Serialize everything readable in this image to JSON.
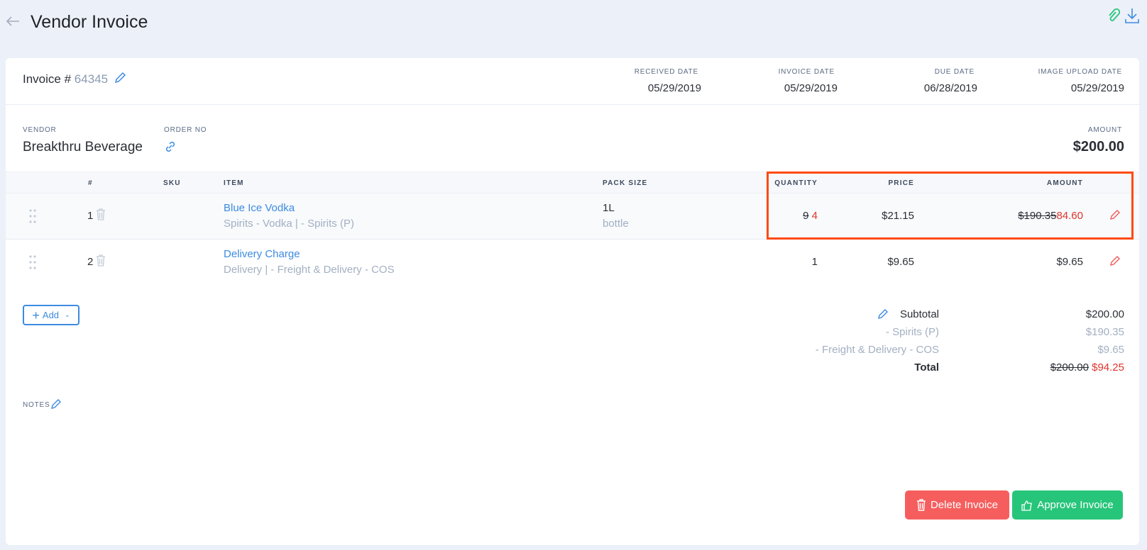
{
  "header": {
    "title": "Vendor Invoice",
    "back_icon": "arrow-left-icon",
    "actions": [
      "paperclip-icon",
      "download-icon"
    ]
  },
  "invoice": {
    "label": "Invoice #",
    "number": "64345",
    "dates": [
      {
        "label": "RECEIVED DATE",
        "value": "05/29/2019"
      },
      {
        "label": "INVOICE DATE",
        "value": "05/29/2019"
      },
      {
        "label": "DUE DATE",
        "value": "06/28/2019"
      },
      {
        "label": "IMAGE UPLOAD DATE",
        "value": "05/29/2019"
      }
    ],
    "vendor_label": "VENDOR",
    "vendor": "Breakthru Beverage",
    "order_label": "ORDER NO",
    "amount_label": "AMOUNT",
    "amount": "$200.00"
  },
  "table": {
    "columns": {
      "num": "#",
      "sku": "SKU",
      "item": "ITEM",
      "pack": "PACK SIZE",
      "qty": "QUANTITY",
      "price": "PRICE",
      "amount": "AMOUNT"
    },
    "rows": [
      {
        "num": "1",
        "name": "Blue Ice Vodka",
        "category": "Spirits - Vodka | - Spirits (P)",
        "pack": "1L",
        "pack_unit": "bottle",
        "qty_old": "9",
        "qty": "4",
        "price": "$21.15",
        "amount_old": "$190.35",
        "amount": "84.60"
      },
      {
        "num": "2",
        "name": "Delivery Charge",
        "category": "Delivery | - Freight & Delivery - COS",
        "pack": "",
        "pack_unit": "",
        "qty": "1",
        "price": "$9.65",
        "amount": "$9.65"
      }
    ]
  },
  "add_button": "Add",
  "totals": {
    "subtotal_label": "Subtotal",
    "subtotal": "$200.00",
    "lines": [
      {
        "label": "- Spirits (P)",
        "value": "$190.35"
      },
      {
        "label": "- Freight & Delivery - COS",
        "value": "$9.65"
      }
    ],
    "total_label": "Total",
    "total_old": "$200.00",
    "total": "$94.25"
  },
  "notes_label": "NOTES",
  "buttons": {
    "delete": "Delete Invoice",
    "approve": "Approve Invoice"
  },
  "colors": {
    "accent": "#3d8be0",
    "danger": "#f65e5e",
    "success": "#27c57a",
    "highlight": "#ff4a12",
    "changed": "#e0342c"
  }
}
